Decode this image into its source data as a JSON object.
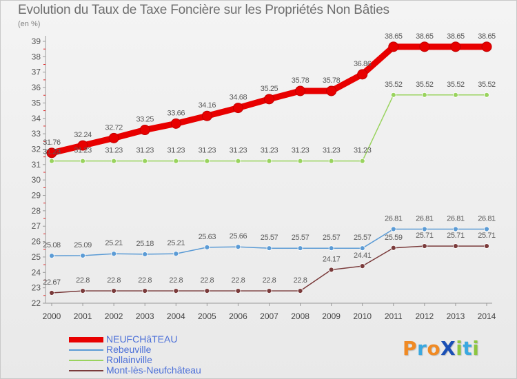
{
  "header": {
    "title": "Evolution du Taux de Taxe Foncière sur les Propriétés Non Bâties",
    "unit": "(en %)"
  },
  "logo": {
    "text": "ProXiti",
    "letters": [
      {
        "ch": "P",
        "color": "#f08a24"
      },
      {
        "ch": "r",
        "color": "#3aa8e0"
      },
      {
        "ch": "o",
        "color": "#f08a24"
      },
      {
        "ch": "X",
        "color": "#1a4fb5"
      },
      {
        "ch": "i",
        "color": "#8cc63f"
      },
      {
        "ch": "t",
        "color": "#3aa8e0"
      },
      {
        "ch": "i",
        "color": "#8cc63f"
      }
    ]
  },
  "chart_data": {
    "type": "line",
    "title": "Evolution du Taux de Taxe Foncière sur les Propriétés Non Bâties",
    "ylabel": "(en %)",
    "xlabel": "",
    "ylim": [
      22,
      39
    ],
    "yticks": [
      "22",
      "23",
      "24",
      "25",
      "26",
      "27",
      "28",
      "29",
      "30",
      "31",
      "32",
      "33",
      "34",
      "35",
      "36",
      "37",
      "38",
      "39"
    ],
    "grid": false,
    "legend_position": "bottom-left",
    "categories": [
      "2000",
      "2001",
      "2002",
      "2003",
      "2004",
      "2005",
      "2006",
      "2007",
      "2008",
      "2009",
      "2010",
      "2011",
      "2012",
      "2013",
      "2014"
    ],
    "series": [
      {
        "name": "NEUFCHâTEAU",
        "color": "#e80000",
        "values": [
          31.76,
          32.24,
          32.72,
          33.25,
          33.66,
          34.16,
          34.68,
          35.25,
          35.78,
          35.78,
          36.86,
          38.65,
          38.65,
          38.65,
          38.65
        ],
        "labels": [
          "31.76",
          "32.24",
          "32.72",
          "33.25",
          "33.66",
          "34.16",
          "34.68",
          "35.25",
          "35.78",
          "35.78",
          "36.86",
          "38.65",
          "38.65",
          "38.65",
          "38.65"
        ]
      },
      {
        "name": "Rebeuville",
        "color": "#5b9bd5",
        "values": [
          25.08,
          25.09,
          25.21,
          25.18,
          25.21,
          25.63,
          25.66,
          25.57,
          25.57,
          25.57,
          25.57,
          26.81,
          26.81,
          26.81,
          26.81
        ],
        "labels": [
          "25.08",
          "25.09",
          "25.21",
          "25.18",
          "25.21",
          "25.63",
          "25.66",
          "25.57",
          "25.57",
          "25.57",
          "25.57",
          "26.81",
          "26.81",
          "26.81",
          "26.81"
        ]
      },
      {
        "name": "Rollainville",
        "color": "#99d35e",
        "values": [
          31.23,
          31.23,
          31.23,
          31.23,
          31.23,
          31.23,
          31.23,
          31.23,
          31.23,
          31.23,
          31.23,
          35.52,
          35.52,
          35.52,
          35.52
        ],
        "labels": [
          "31.23",
          "31.23",
          "31.23",
          "31.23",
          "31.23",
          "31.23",
          "31.23",
          "31.23",
          "31.23",
          "31.23",
          "31.23",
          "35.52",
          "35.52",
          "35.52",
          "35.52"
        ]
      },
      {
        "name": "Mont-lès-Neufchâteau",
        "color": "#7a3b3b",
        "values": [
          22.67,
          22.8,
          22.8,
          22.8,
          22.8,
          22.8,
          22.8,
          22.8,
          22.8,
          24.17,
          24.41,
          25.59,
          25.71,
          25.71,
          25.71
        ],
        "labels": [
          "22.67",
          "22.8",
          "22.8",
          "22.8",
          "22.8",
          "22.8",
          "22.8",
          "22.8",
          "22.8",
          "24.17",
          "24.41",
          "25.59",
          "25.71",
          "25.71",
          "25.71"
        ]
      }
    ]
  }
}
